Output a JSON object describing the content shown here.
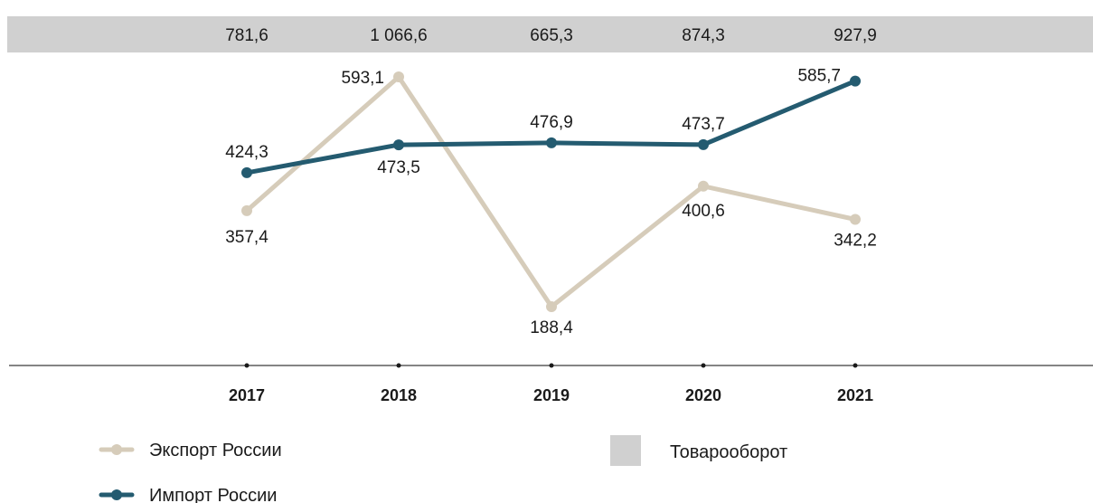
{
  "chart_data": {
    "type": "line",
    "title": "",
    "x": [
      "2017",
      "2018",
      "2019",
      "2020",
      "2021"
    ],
    "series": [
      {
        "name": "Экспорт России",
        "values": [
          357.4,
          593.1,
          188.4,
          400.6,
          342.2
        ],
        "color": "#d6ccba",
        "labels": [
          "357,4",
          "593,1",
          "188,4",
          "400,6",
          "342,2"
        ]
      },
      {
        "name": "Импорт России",
        "values": [
          424.3,
          473.5,
          476.9,
          473.7,
          585.7
        ],
        "color": "#245b70",
        "labels": [
          "424,3",
          "473,5",
          "476,9",
          "473,7",
          "585,7"
        ]
      }
    ],
    "turnover": {
      "name": "Товарооборот",
      "values": [
        781.6,
        1066.6,
        665.3,
        874.3,
        927.9
      ],
      "labels": [
        "781,6",
        "1 066,6",
        "665,3",
        "874,3",
        "927,9"
      ],
      "color": "#d0d0d0"
    },
    "ylim": [
      150,
      620
    ],
    "grid": false,
    "legend_position": "bottom"
  }
}
